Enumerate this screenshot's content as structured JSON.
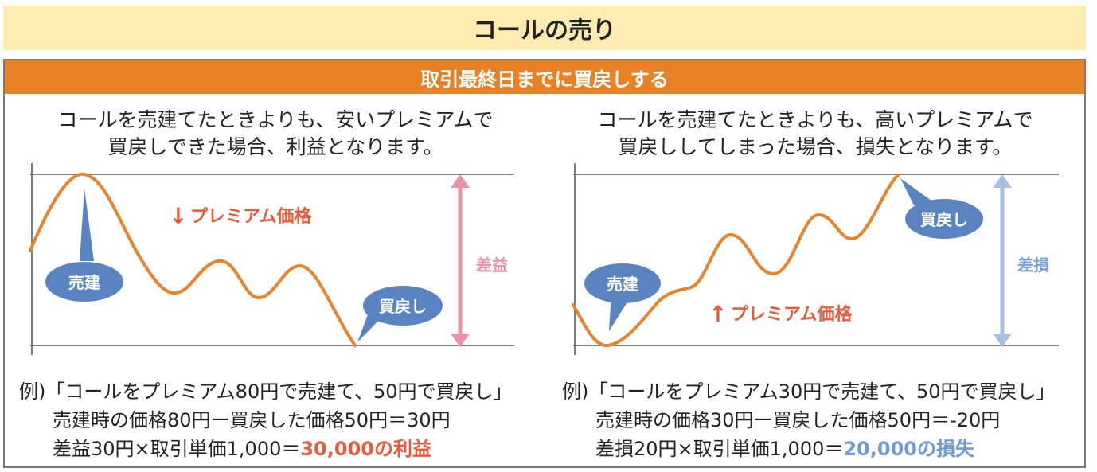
{
  "title": "コールの売り",
  "subtitle": "取引最終日までに買戻しする",
  "colors": {
    "orange": "#e88125",
    "title_bg": "#fcecb2",
    "profit": "#ea5a3a",
    "loss": "#6e9bd3",
    "bubble": "#5a83c2",
    "line": "#e8832b"
  },
  "left": {
    "desc_line1": "コールを売建てたときよりも、安いプレミアムで",
    "desc_line2": "買戻しできた場合、利益となります。",
    "sell_label": "売建",
    "buy_label": "買戻し",
    "trend_arrow": "↓",
    "trend_label": "プレミアム価格",
    "diff_label": "差益",
    "example_line1": "例)「コールをプレミアム80円で売建て、50円で買戻し」",
    "example_line2": "売建時の価格80円ー買戻した価格50円＝30円",
    "example_line3_prefix": "差益30円×取引単価1,000＝",
    "example_line3_result": "30,000の利益"
  },
  "right": {
    "desc_line1": "コールを売建てたときよりも、高いプレミアムで",
    "desc_line2": "買戻ししてしまった場合、損失となります。",
    "sell_label": "売建",
    "buy_label": "買戻し",
    "trend_arrow": "↑",
    "trend_label": "プレミアム価格",
    "diff_label": "差損",
    "example_line1": "例)「コールをプレミアム30円で売建て、50円で買戻し」",
    "example_line2": "売建時の価格30円ー買戻した価格50円＝-20円",
    "example_line3_prefix": "差損20円×取引単価1,000＝",
    "example_line3_result": "20,000の損失"
  }
}
